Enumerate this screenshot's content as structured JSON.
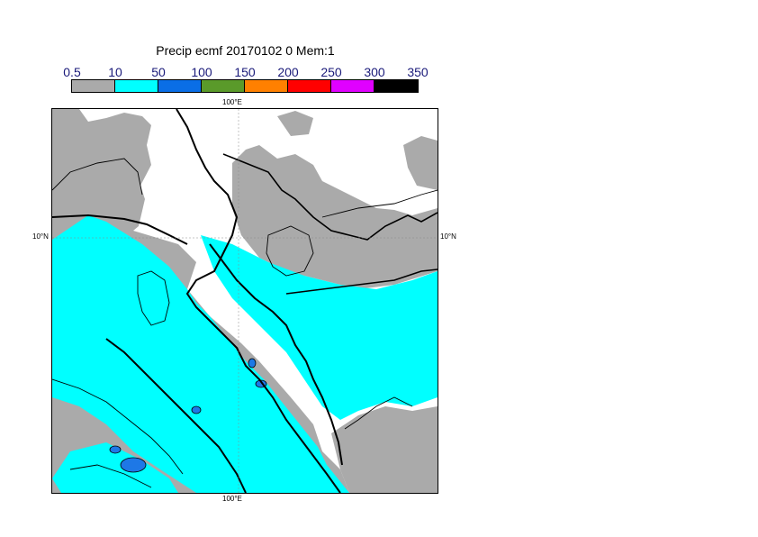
{
  "title": "Precip ecmf 20170102 0 Mem:1",
  "legend": {
    "ticks": [
      "0.5",
      "10",
      "50",
      "100",
      "150",
      "200",
      "250",
      "300",
      "350"
    ],
    "colors": [
      "#aaaaaa",
      "#00ffff",
      "#0a6ee6",
      "#5a9a2a",
      "#ff8000",
      "#ff0000",
      "#e000ff",
      "#000000"
    ]
  },
  "map": {
    "land_color": "#aaaaaa",
    "precip_color": "#00ffff",
    "heavy_color": "#1e78e6",
    "coord_labels": {
      "top": "100°E",
      "bottom": "100°E",
      "left": "10°N",
      "right": "10°N"
    }
  }
}
